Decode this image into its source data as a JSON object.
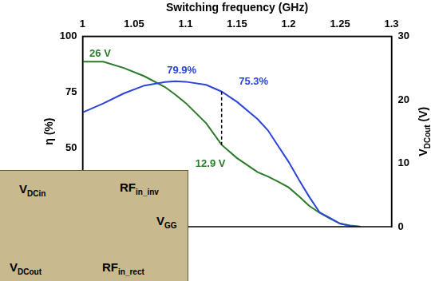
{
  "chart_data": {
    "type": "line",
    "x_label": "Switching frequency (GHz)",
    "y_label": "η (%)",
    "y2_label": {
      "text": "V",
      "sub": "DCout",
      "suffix": " (V)"
    },
    "x": [
      1.0,
      1.02,
      1.04,
      1.06,
      1.08,
      1.09,
      1.1,
      1.12,
      1.135,
      1.15,
      1.17,
      1.18,
      1.19,
      1.2,
      1.21,
      1.22,
      1.23,
      1.24,
      1.25,
      1.26,
      1.27
    ],
    "series": [
      {
        "color": "#2b45d9",
        "axis": "y",
        "values": [
          66,
          70,
          74.5,
          78,
          79.6,
          79.9,
          79.7,
          78.3,
          75.3,
          70.7,
          63,
          58,
          51,
          44,
          36,
          28.4,
          21.5,
          19,
          16.4,
          15.3,
          15
        ]
      },
      {
        "color": "#2a7a2a",
        "axis": "y2",
        "values": [
          26,
          26,
          25,
          23.7,
          22,
          20.8,
          19.5,
          16.3,
          12.9,
          10.8,
          8.6,
          7.9,
          7.1,
          6.2,
          4.8,
          3.3,
          2.2,
          1.3,
          0.5,
          0.2,
          0
        ]
      }
    ],
    "xlim": [
      1,
      1.3
    ],
    "xticks": [
      1,
      1.05,
      1.1,
      1.15,
      1.2,
      1.25,
      1.3
    ],
    "ylim": [
      15,
      100
    ],
    "yticks": [
      50,
      75,
      100
    ],
    "y2lim": [
      0,
      30
    ],
    "y2ticks": [
      0,
      10,
      20,
      30
    ],
    "grid": false,
    "annotations": [
      {
        "text": "26 V",
        "x": 1.0,
        "y": 26,
        "axis": "y2"
      },
      {
        "text": "79.9%",
        "x": 1.09,
        "y": 79.9,
        "axis": "y"
      },
      {
        "text": "75.3%",
        "x": 1.135,
        "y": 75.3,
        "axis": "y"
      },
      {
        "text": "12.9 V",
        "x": 1.135,
        "y": 12.9,
        "axis": "y2"
      }
    ],
    "vlines": [
      {
        "x": 1.135,
        "line_style": "dashed",
        "color": "#000000"
      }
    ],
    "inset": {
      "labels": [
        {
          "text": "V",
          "sub": "DCin"
        },
        {
          "text": "RF",
          "sub": "in_inv"
        },
        {
          "text": "V",
          "sub": "GG"
        },
        {
          "text": "V",
          "sub": "DCout"
        },
        {
          "text": "RF",
          "sub": "in_rect"
        }
      ]
    }
  }
}
